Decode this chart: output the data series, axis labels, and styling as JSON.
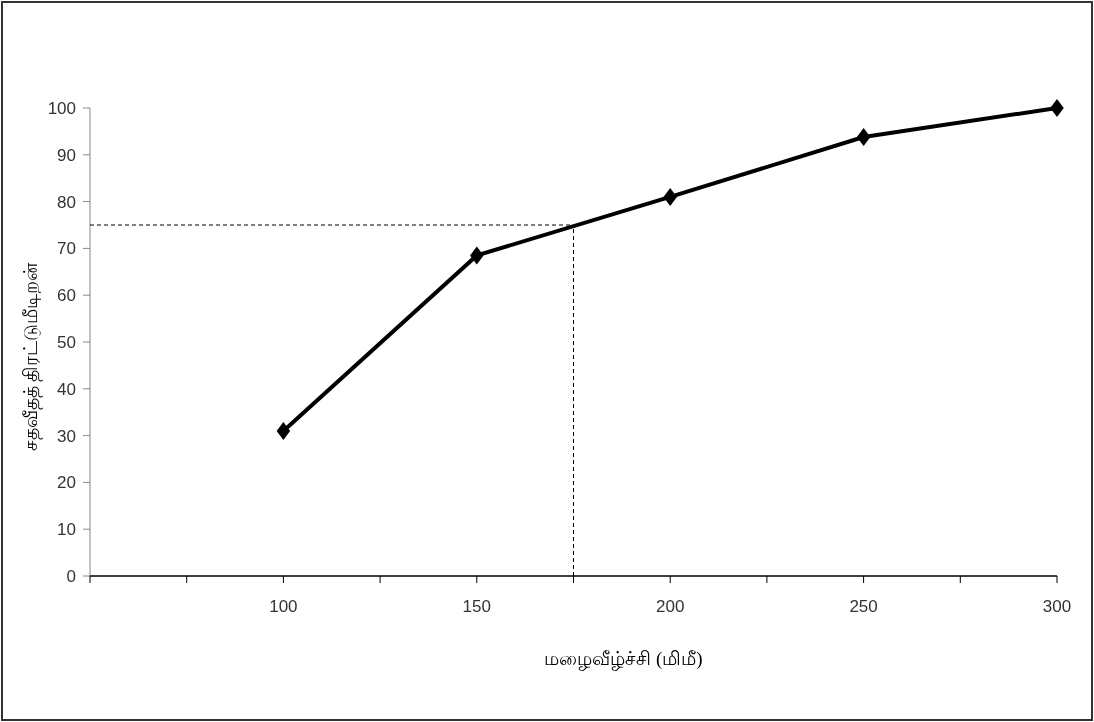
{
  "chart_data": {
    "type": "line",
    "xlabel": "மழைவீழ்ச்சி (மிமீ)",
    "ylabel": "சதவீதத் திரட்டுமீடிறன்",
    "x": [
      100,
      150,
      200,
      250,
      300
    ],
    "series": [
      {
        "color": "#000000",
        "values": [
          31,
          68.5,
          81,
          93.8,
          100
        ]
      }
    ],
    "xlim": [
      50,
      300
    ],
    "xticks": [
      {
        "value": 50,
        "label": null
      },
      {
        "value": 75,
        "label": null
      },
      100,
      {
        "value": 125,
        "label": null
      },
      150,
      {
        "value": 175,
        "label": null
      },
      200,
      {
        "value": 225,
        "label": null
      },
      250,
      {
        "value": 275,
        "label": null
      },
      300
    ],
    "ylim": [
      0,
      100
    ],
    "yticks": [
      0,
      10,
      20,
      30,
      40,
      50,
      60,
      70,
      80,
      90,
      100
    ],
    "ref_lines": [
      {
        "axis": "x",
        "value": 175,
        "line_style": "dashed"
      },
      {
        "axis": "y",
        "value": 75,
        "line_style": "dashed"
      }
    ],
    "marker": "diamond",
    "line_style": "solid",
    "grid": false
  }
}
